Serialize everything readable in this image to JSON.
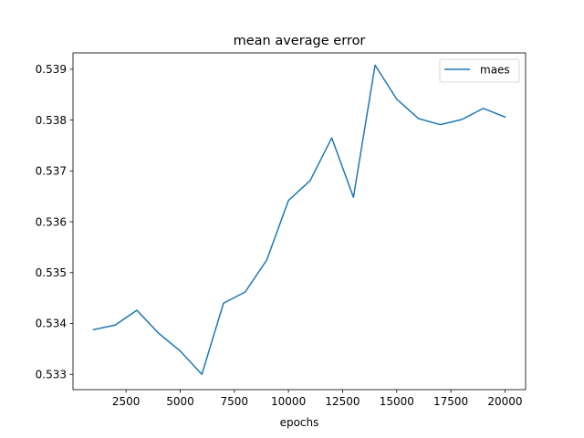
{
  "chart_data": {
    "type": "line",
    "title": "mean average error",
    "xlabel": "epochs",
    "ylabel": "",
    "xlim": [
      50,
      20950
    ],
    "ylim": [
      0.5327,
      0.53932
    ],
    "xticks": [
      2500,
      5000,
      7500,
      10000,
      12500,
      15000,
      17500,
      20000
    ],
    "xtick_labels": [
      "2500",
      "5000",
      "7500",
      "10000",
      "12500",
      "15000",
      "17500",
      "20000"
    ],
    "yticks": [
      0.533,
      0.534,
      0.535,
      0.536,
      0.537,
      0.538,
      0.539
    ],
    "ytick_labels": [
      "0.533",
      "0.534",
      "0.535",
      "0.536",
      "0.537",
      "0.538",
      "0.539"
    ],
    "grid": false,
    "legend_position": "top-right",
    "series": [
      {
        "name": "maes",
        "color": "#1f77b4",
        "x": [
          1000,
          2000,
          3000,
          4000,
          5000,
          6000,
          7000,
          8000,
          9000,
          10000,
          11000,
          12000,
          13000,
          14000,
          15000,
          16000,
          17000,
          18000,
          19000,
          20000
        ],
        "y": [
          0.53388,
          0.53397,
          0.53426,
          0.53381,
          0.53346,
          0.533,
          0.5344,
          0.53462,
          0.53525,
          0.53642,
          0.53681,
          0.53765,
          0.53648,
          0.53908,
          0.53841,
          0.53803,
          0.53791,
          0.53801,
          0.53823,
          0.53806
        ]
      }
    ]
  }
}
